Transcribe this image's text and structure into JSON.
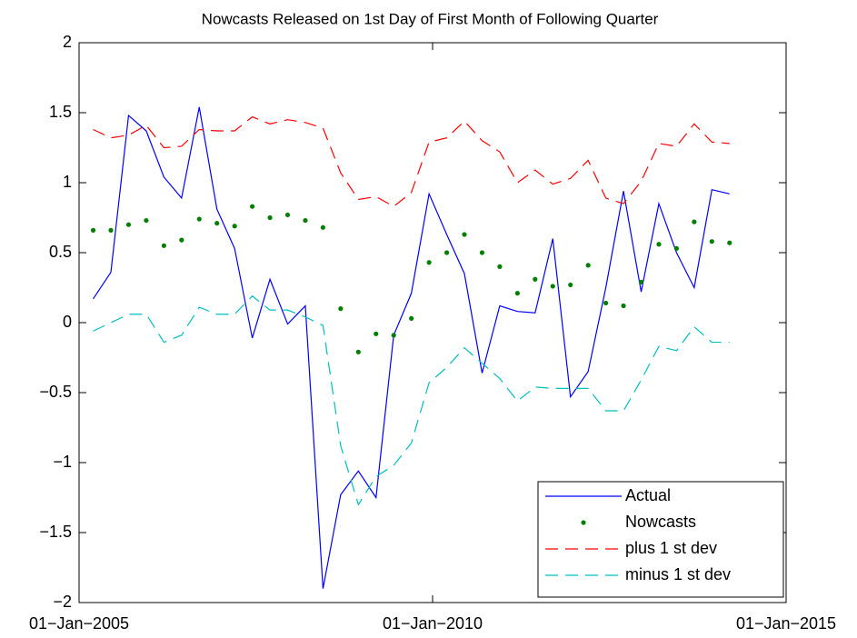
{
  "chart_data": {
    "type": "line",
    "title": "Nowcasts Released on 1st Day of First Month of Following Quarter",
    "x": [
      2005.2,
      2005.45,
      2005.7,
      2005.95,
      2006.2,
      2006.45,
      2006.7,
      2006.95,
      2007.2,
      2007.45,
      2007.7,
      2007.95,
      2008.2,
      2008.45,
      2008.7,
      2008.95,
      2009.2,
      2009.45,
      2009.7,
      2009.95,
      2010.2,
      2010.45,
      2010.7,
      2010.95,
      2011.2,
      2011.45,
      2011.7,
      2011.95,
      2012.2,
      2012.45,
      2012.7,
      2012.95,
      2013.2,
      2013.45,
      2013.7,
      2013.95,
      2014.2
    ],
    "series": [
      {
        "name": "Actual",
        "color": "#0000ff",
        "style": "solid",
        "values": [
          0.17,
          0.36,
          1.48,
          1.37,
          1.04,
          0.89,
          1.54,
          0.81,
          0.53,
          -0.11,
          0.31,
          -0.01,
          0.12,
          -1.9,
          -1.23,
          -1.06,
          -1.25,
          -0.09,
          0.21,
          0.92,
          0.63,
          0.35,
          -0.36,
          0.12,
          0.08,
          0.07,
          0.6,
          -0.53,
          -0.35,
          0.25,
          0.94,
          0.22,
          0.85,
          0.5,
          0.25,
          0.95,
          0.92
        ]
      },
      {
        "name": "Nowcasts",
        "color": "#007f00",
        "style": "dots",
        "values": [
          0.66,
          0.66,
          0.7,
          0.73,
          0.55,
          0.59,
          0.74,
          0.71,
          0.69,
          0.83,
          0.75,
          0.77,
          0.73,
          0.68,
          0.1,
          -0.21,
          -0.08,
          -0.09,
          0.03,
          0.43,
          0.5,
          0.63,
          0.5,
          0.4,
          0.21,
          0.31,
          0.26,
          0.27,
          0.41,
          0.14,
          0.12,
          0.29,
          0.56,
          0.53,
          0.72,
          0.58,
          0.57
        ]
      },
      {
        "name": "plus 1 st dev",
        "color": "#ff0000",
        "style": "dashed",
        "values": [
          1.38,
          1.32,
          1.34,
          1.41,
          1.25,
          1.26,
          1.38,
          1.37,
          1.37,
          1.47,
          1.42,
          1.45,
          1.43,
          1.39,
          1.07,
          0.88,
          0.9,
          0.83,
          0.93,
          1.29,
          1.32,
          1.44,
          1.3,
          1.22,
          1.0,
          1.09,
          0.99,
          1.03,
          1.16,
          0.89,
          0.85,
          1.01,
          1.28,
          1.26,
          1.42,
          1.29,
          1.28
        ]
      },
      {
        "name": "minus 1 st dev",
        "color": "#00bfbf",
        "style": "dashed",
        "values": [
          -0.06,
          0.0,
          0.06,
          0.06,
          -0.14,
          -0.09,
          0.11,
          0.06,
          0.06,
          0.19,
          0.09,
          0.09,
          0.04,
          -0.02,
          -0.88,
          -1.3,
          -1.1,
          -1.02,
          -0.86,
          -0.43,
          -0.32,
          -0.18,
          -0.29,
          -0.4,
          -0.56,
          -0.46,
          -0.47,
          -0.47,
          -0.47,
          -0.63,
          -0.63,
          -0.41,
          -0.17,
          -0.2,
          -0.03,
          -0.14,
          -0.14
        ]
      }
    ],
    "xlim": [
      2005,
      2015
    ],
    "xticks": [
      {
        "value": 2005,
        "label": "01−Jan−2005"
      },
      {
        "value": 2010,
        "label": "01−Jan−2010"
      },
      {
        "value": 2015,
        "label": "01−Jan−2015"
      }
    ],
    "ylim": [
      -2,
      2
    ],
    "yticks": [
      {
        "value": -2,
        "label": "−2"
      },
      {
        "value": -1.5,
        "label": "−1.5"
      },
      {
        "value": -1,
        "label": "−1"
      },
      {
        "value": -0.5,
        "label": "−0.5"
      },
      0,
      0.5,
      1,
      1.5,
      2
    ],
    "grid": false,
    "legend": "southeast"
  }
}
